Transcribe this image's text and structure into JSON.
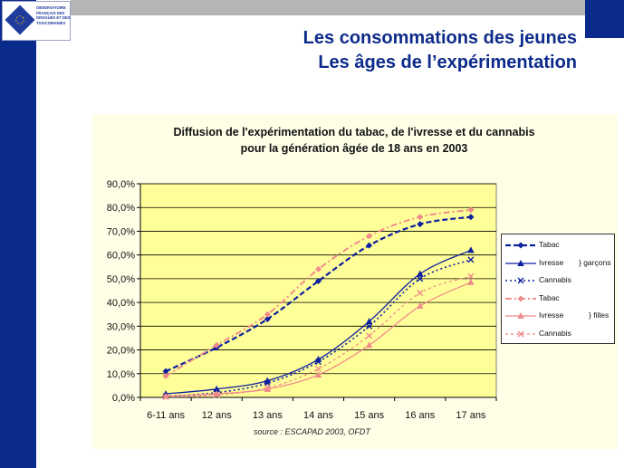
{
  "header": {
    "logo_text": "OBSERVATOIRE FRANÇAIS DES DROGUES ET DES TOXICOMANIES",
    "logo_emblem_text": "OFDT",
    "title_line1": "Les consommations des jeunes",
    "title_line2": "Les âges de l’expérimentation"
  },
  "colors": {
    "brand_blue": "#0a2a8c",
    "boys": "#0d1f9e",
    "girls": "#f08b8b",
    "plot_bg": "#ffff99"
  },
  "chart_data": {
    "type": "line",
    "title_line1": "Diffusion de l'expérimentation du tabac, de l'ivresse et du cannabis",
    "title_line2": "pour la génération âgée de 18 ans en 2003",
    "categories": [
      "6-11 ans",
      "12 ans",
      "13 ans",
      "14 ans",
      "15 ans",
      "16 ans",
      "17 ans"
    ],
    "y_ticks": [
      "0,0%",
      "10,0%",
      "20,0%",
      "30,0%",
      "40,0%",
      "50,0%",
      "60,0%",
      "70,0%",
      "80,0%",
      "90,0%"
    ],
    "ylim": [
      0,
      90
    ],
    "grid": "horizontal",
    "legend_position": "right",
    "source": "source : ESCAPAD 2003, OFDT",
    "groups": {
      "boys": "} garçons",
      "girls": "} filles"
    },
    "series": [
      {
        "name": "Tabac",
        "group": "boys",
        "values": [
          11,
          21,
          33,
          49,
          64,
          73,
          76
        ]
      },
      {
        "name": "Ivresse",
        "group": "boys",
        "values": [
          1.5,
          3.5,
          7,
          16,
          32,
          52,
          62
        ]
      },
      {
        "name": "Cannabis",
        "group": "boys",
        "values": [
          0.5,
          2,
          6,
          15,
          30,
          50,
          58
        ]
      },
      {
        "name": "Tabac",
        "group": "girls",
        "values": [
          9,
          22,
          35,
          54,
          68,
          76,
          79
        ]
      },
      {
        "name": "Ivresse",
        "group": "girls",
        "values": [
          0.5,
          1.5,
          3.5,
          9.5,
          22,
          38.5,
          48.5
        ]
      },
      {
        "name": "Cannabis",
        "group": "girls",
        "values": [
          0.2,
          1,
          4,
          12,
          26,
          44,
          51
        ]
      }
    ]
  }
}
